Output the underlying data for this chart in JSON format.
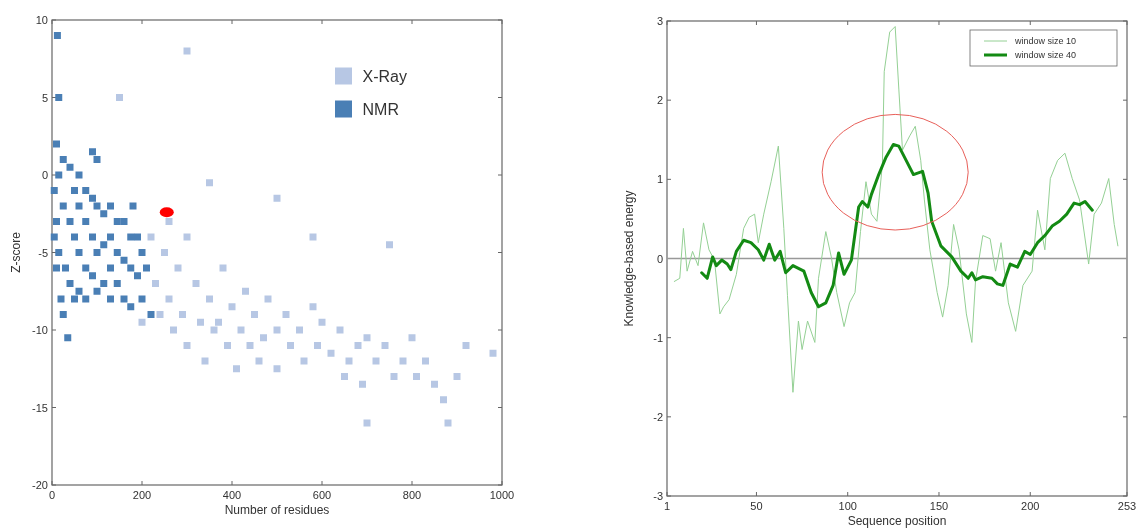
{
  "chart_data": [
    {
      "type": "scatter",
      "xlabel": "Number of residues",
      "ylabel": "Z-score",
      "xlim": [
        0,
        1000
      ],
      "xticks": [
        0,
        200,
        400,
        600,
        800,
        1000
      ],
      "ylim": [
        -20,
        10
      ],
      "yticks": [
        -20,
        -15,
        -10,
        -5,
        0,
        5,
        10
      ],
      "legend": "top right",
      "grid": false,
      "series": [
        {
          "name": "X-Ray",
          "color": "#b7c7e4",
          "marker": "square",
          "x": [
            220,
            230,
            240,
            250,
            260,
            270,
            280,
            290,
            300,
            300,
            320,
            330,
            340,
            350,
            360,
            370,
            380,
            390,
            400,
            410,
            420,
            430,
            440,
            450,
            460,
            470,
            480,
            500,
            500,
            520,
            530,
            550,
            560,
            580,
            590,
            600,
            620,
            640,
            650,
            660,
            680,
            690,
            700,
            700,
            720,
            740,
            760,
            780,
            800,
            810,
            830,
            850,
            870,
            880,
            900,
            350,
            500,
            580,
            750,
            150,
            300,
            920,
            980,
            260,
            200
          ],
          "values": [
            -4,
            -7,
            -9,
            -5,
            -8,
            -10,
            -6,
            -9,
            -11,
            -4,
            -7,
            -9.5,
            -12,
            -8,
            -10,
            -9.5,
            -6,
            -11,
            -8.5,
            -12.5,
            -10,
            -7.5,
            -11,
            -9,
            -12,
            -10.5,
            -8,
            -10,
            -12.5,
            -9,
            -11,
            -10,
            -12,
            -8.5,
            -11,
            -9.5,
            -11.5,
            -10,
            -13,
            -12,
            -11,
            -13.5,
            -16,
            -10.5,
            -12,
            -11,
            -13,
            -12,
            -10.5,
            -13,
            -12,
            -13.5,
            -14.5,
            -16,
            -13,
            -0.5,
            -1.5,
            -4,
            -4.5,
            5,
            8,
            -11,
            -11.5,
            -3,
            -9.5
          ]
        },
        {
          "name": "NMR",
          "color": "#4a7fb5",
          "marker": "square",
          "x": [
            5,
            5,
            10,
            10,
            10,
            12,
            15,
            15,
            15,
            20,
            25,
            25,
            25,
            30,
            35,
            40,
            40,
            40,
            50,
            50,
            50,
            60,
            60,
            60,
            60,
            75,
            75,
            75,
            75,
            90,
            90,
            90,
            100,
            100,
            100,
            100,
            115,
            115,
            115,
            130,
            130,
            130,
            130,
            145,
            145,
            145,
            160,
            160,
            160,
            175,
            175,
            175,
            190,
            190,
            200,
            200,
            210,
            220,
            180,
            90
          ],
          "values": [
            -1,
            -4,
            2,
            -3,
            -6,
            9,
            5,
            0,
            -5,
            -8,
            1,
            -2,
            -9,
            -6,
            -10.5,
            0.5,
            -3,
            -7,
            -1,
            -4,
            -8,
            0,
            -2,
            -5,
            -7.5,
            -1,
            -3,
            -6,
            -8,
            -1.5,
            -4,
            -6.5,
            1,
            -2,
            -5,
            -7.5,
            -2.5,
            -4.5,
            -7,
            -2,
            -4,
            -6,
            -8,
            -3,
            -5,
            -7,
            -3,
            -5.5,
            -8,
            -4,
            -6,
            -8.5,
            -4,
            -6.5,
            -5,
            -8,
            -6,
            -9,
            -2,
            1.5
          ]
        },
        {
          "color": "#ff0000",
          "marker": "circle",
          "x": [
            255
          ],
          "values": [
            -2.4
          ]
        }
      ]
    },
    {
      "type": "line",
      "xlabel": "Sequence position",
      "ylabel": "Knowledge-based energy",
      "xlim": [
        1,
        253
      ],
      "xticks": [
        1,
        50,
        100,
        150,
        200,
        253
      ],
      "ylim": [
        -3,
        3
      ],
      "yticks": [
        -3,
        -2,
        -1,
        0,
        1,
        2,
        3
      ],
      "legend": "top right",
      "grid": false,
      "marker": "none",
      "ref_lines": [
        {
          "axis": "y",
          "value": 0,
          "color": "#999999"
        }
      ],
      "series": [
        {
          "name": "window size 10",
          "color": "#94d094",
          "x": [
            5,
            8,
            10,
            12,
            15,
            18,
            21,
            24,
            27,
            30,
            32,
            35,
            39,
            43,
            46,
            49,
            51,
            54,
            58,
            62,
            65,
            67,
            70,
            73,
            75,
            78,
            82,
            84,
            88,
            91,
            94,
            98,
            101,
            104,
            107,
            110,
            113,
            116,
            119,
            120,
            123,
            126,
            128,
            130,
            134,
            137,
            140,
            142,
            145,
            149,
            152,
            155,
            158,
            161,
            165,
            168,
            170,
            174,
            178,
            181,
            184,
            188,
            192,
            196,
            201,
            204,
            208,
            211,
            215,
            219,
            223,
            227,
            232,
            235,
            239,
            243,
            246,
            248
          ],
          "values": [
            -0.29,
            -0.25,
            0.38,
            -0.16,
            0.09,
            -0.09,
            0.45,
            0.11,
            -0.02,
            -0.7,
            -0.61,
            -0.52,
            -0.2,
            0.38,
            0.52,
            0.56,
            0.2,
            0.56,
            0.97,
            1.42,
            0.38,
            -0.47,
            -1.69,
            -0.79,
            -1.15,
            -0.79,
            -1.06,
            -0.25,
            0.34,
            0.02,
            -0.43,
            -0.86,
            -0.56,
            -0.43,
            0.34,
            0.97,
            0.56,
            0.47,
            1.19,
            2.36,
            2.86,
            2.93,
            2.14,
            1.37,
            1.55,
            1.67,
            1.24,
            0.74,
            0.11,
            -0.43,
            -0.74,
            -0.34,
            0.43,
            0.11,
            -0.7,
            -1.06,
            -0.29,
            0.29,
            0.25,
            -0.16,
            0.2,
            -0.56,
            -0.92,
            -0.34,
            -0.16,
            0.61,
            0.11,
            1.01,
            1.24,
            1.33,
            1.01,
            0.74,
            -0.07,
            0.56,
            0.7,
            1.01,
            0.43,
            0.16
          ]
        },
        {
          "name": "window size 40",
          "color": "#138a13",
          "x": [
            20,
            23,
            26,
            28,
            31,
            34,
            36,
            39,
            43,
            47,
            51,
            54,
            57,
            60,
            63,
            66,
            70,
            76,
            80,
            84,
            88,
            92,
            95,
            98,
            102,
            106,
            108,
            111,
            113,
            117,
            121,
            125,
            128,
            132,
            136,
            141,
            144,
            146,
            151,
            157,
            162,
            166,
            168,
            170,
            174,
            179,
            182,
            185,
            189,
            193,
            197,
            200,
            204,
            208,
            212,
            216,
            220,
            224,
            227,
            230,
            234
          ],
          "values": [
            -0.18,
            -0.25,
            0.02,
            -0.09,
            -0.02,
            -0.07,
            -0.14,
            0.09,
            0.23,
            0.2,
            0.11,
            -0.02,
            0.18,
            -0.02,
            0.09,
            -0.18,
            -0.09,
            -0.16,
            -0.43,
            -0.61,
            -0.56,
            -0.34,
            0.07,
            -0.2,
            -0.02,
            0.65,
            0.72,
            0.65,
            0.81,
            1.06,
            1.28,
            1.44,
            1.42,
            1.24,
            1.06,
            1.1,
            0.83,
            0.47,
            0.16,
            0.02,
            -0.16,
            -0.25,
            -0.18,
            -0.27,
            -0.23,
            -0.25,
            -0.32,
            -0.34,
            -0.07,
            -0.11,
            0.09,
            0.05,
            0.2,
            0.29,
            0.41,
            0.47,
            0.56,
            0.7,
            0.68,
            0.72,
            0.61
          ]
        }
      ]
    }
  ]
}
